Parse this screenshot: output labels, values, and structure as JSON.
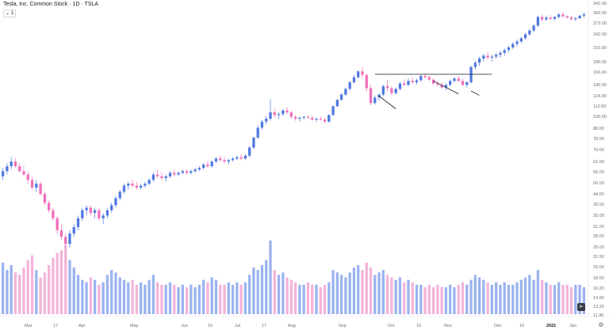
{
  "header": {
    "title": "Tesla, Inc. Common Stock · 1D · TSLA",
    "indicator_badge": "1"
  },
  "controls": {
    "replay_icon": "replay-icon",
    "settings_icon": "gear-icon"
  },
  "colors": {
    "up": "#4f78e0",
    "down": "#f06fb9",
    "vol_up": "#9ab3ef",
    "vol_down": "#f4b3da",
    "trend": "#131722"
  },
  "chart_data": {
    "type": "candlestick",
    "price_scale": "log",
    "price_axis_labels": [
      "342.00",
      "300.00",
      "273.00",
      "242.00",
      "210.00",
      "180.00",
      "160.00",
      "140.00",
      "124.00",
      "112.00",
      "100.00",
      "88.00",
      "78.00",
      "70.00",
      "62.00",
      "56.00",
      "50.00",
      "44.00",
      "39.00",
      "35.00",
      "31.00",
      "28.00",
      "25.00"
    ],
    "volume_axis_labels": [
      "22.50",
      "20.00",
      "18.00",
      "16.20",
      "14.60",
      "13.20",
      "11.90"
    ],
    "x_labels": [
      {
        "text": "Mar",
        "bold": false
      },
      {
        "text": "17",
        "bold": false
      },
      {
        "text": "Apr",
        "bold": false
      },
      {
        "text": "May",
        "bold": false
      },
      {
        "text": "Jun",
        "bold": false
      },
      {
        "text": "16",
        "bold": false
      },
      {
        "text": "Jul",
        "bold": false
      },
      {
        "text": "17",
        "bold": false
      },
      {
        "text": "Aug",
        "bold": false
      },
      {
        "text": "Sep",
        "bold": false
      },
      {
        "text": "Oct",
        "bold": false
      },
      {
        "text": "16",
        "bold": false
      },
      {
        "text": "Nov",
        "bold": false
      },
      {
        "text": "Dec",
        "bold": false
      },
      {
        "text": "16",
        "bold": false
      },
      {
        "text": "2021",
        "bold": true
      },
      {
        "text": "Jan",
        "bold": false
      }
    ],
    "candles": [
      [
        52,
        57,
        50,
        55
      ],
      [
        55,
        60,
        53,
        58
      ],
      [
        58,
        64,
        56,
        61
      ],
      [
        61,
        63,
        57,
        58
      ],
      [
        58,
        60,
        54,
        55
      ],
      [
        55,
        58,
        52,
        53
      ],
      [
        53,
        55,
        48,
        50
      ],
      [
        50,
        52,
        45,
        46
      ],
      [
        46,
        50,
        44,
        48
      ],
      [
        48,
        49,
        42,
        43
      ],
      [
        43,
        44,
        38,
        39
      ],
      [
        39,
        40,
        35,
        36
      ],
      [
        36,
        37,
        32,
        33
      ],
      [
        33,
        34,
        28,
        29
      ],
      [
        29,
        31,
        26,
        27
      ],
      [
        27,
        28,
        24,
        25
      ],
      [
        25,
        29,
        24,
        28
      ],
      [
        28,
        31,
        27,
        30
      ],
      [
        30,
        34,
        29,
        33
      ],
      [
        33,
        37,
        32,
        36
      ],
      [
        36,
        38,
        34,
        37
      ],
      [
        37,
        38,
        34,
        35
      ],
      [
        35,
        37,
        33,
        36
      ],
      [
        36,
        37,
        32,
        33
      ],
      [
        33,
        35,
        31,
        34
      ],
      [
        34,
        37,
        33,
        36
      ],
      [
        36,
        39,
        35,
        38
      ],
      [
        38,
        42,
        37,
        41
      ],
      [
        41,
        45,
        40,
        44
      ],
      [
        44,
        48,
        43,
        47
      ],
      [
        47,
        49,
        45,
        48
      ],
      [
        48,
        50,
        46,
        47
      ],
      [
        47,
        49,
        45,
        46
      ],
      [
        46,
        48,
        45,
        47
      ],
      [
        47,
        49,
        46,
        48
      ],
      [
        48,
        51,
        47,
        50
      ],
      [
        50,
        54,
        49,
        53
      ],
      [
        53,
        56,
        51,
        52
      ],
      [
        52,
        54,
        50,
        51
      ],
      [
        51,
        53,
        49,
        52
      ],
      [
        52,
        55,
        51,
        54
      ],
      [
        54,
        56,
        52,
        53
      ],
      [
        53,
        55,
        52,
        54
      ],
      [
        54,
        56,
        53,
        55
      ],
      [
        55,
        56,
        53,
        54
      ],
      [
        54,
        56,
        53,
        55
      ],
      [
        55,
        57,
        54,
        56
      ],
      [
        56,
        58,
        55,
        57
      ],
      [
        57,
        60,
        56,
        59
      ],
      [
        59,
        61,
        57,
        58
      ],
      [
        58,
        62,
        57,
        61
      ],
      [
        61,
        64,
        60,
        63
      ],
      [
        63,
        65,
        61,
        62
      ],
      [
        62,
        64,
        60,
        61
      ],
      [
        61,
        63,
        59,
        62
      ],
      [
        62,
        64,
        61,
        63
      ],
      [
        63,
        65,
        62,
        64
      ],
      [
        64,
        66,
        62,
        63
      ],
      [
        63,
        66,
        62,
        65
      ],
      [
        65,
        72,
        64,
        71
      ],
      [
        71,
        80,
        70,
        79
      ],
      [
        79,
        90,
        78,
        88
      ],
      [
        88,
        96,
        86,
        94
      ],
      [
        94,
        100,
        91,
        97
      ],
      [
        97,
        120,
        95,
        104
      ],
      [
        104,
        108,
        98,
        101
      ],
      [
        101,
        104,
        97,
        102
      ],
      [
        102,
        108,
        100,
        106
      ],
      [
        106,
        110,
        102,
        104
      ],
      [
        104,
        106,
        97,
        99
      ],
      [
        99,
        101,
        95,
        97
      ],
      [
        97,
        99,
        94,
        98
      ],
      [
        98,
        100,
        96,
        99
      ],
      [
        99,
        101,
        97,
        98
      ],
      [
        98,
        100,
        95,
        96
      ],
      [
        96,
        98,
        94,
        97
      ],
      [
        97,
        99,
        95,
        96
      ],
      [
        96,
        98,
        93,
        94
      ],
      [
        94,
        102,
        93,
        101
      ],
      [
        101,
        112,
        100,
        111
      ],
      [
        111,
        120,
        110,
        119
      ],
      [
        119,
        128,
        118,
        126
      ],
      [
        126,
        136,
        124,
        134
      ],
      [
        134,
        146,
        132,
        144
      ],
      [
        144,
        156,
        142,
        152
      ],
      [
        152,
        164,
        150,
        162
      ],
      [
        162,
        170,
        150,
        156
      ],
      [
        156,
        158,
        130,
        135
      ],
      [
        135,
        140,
        112,
        115
      ],
      [
        115,
        125,
        113,
        122
      ],
      [
        122,
        128,
        118,
        126
      ],
      [
        126,
        140,
        124,
        138
      ],
      [
        138,
        148,
        130,
        135
      ],
      [
        135,
        138,
        125,
        128
      ],
      [
        128,
        136,
        126,
        134
      ],
      [
        134,
        145,
        132,
        142
      ],
      [
        142,
        148,
        138,
        140
      ],
      [
        140,
        150,
        138,
        146
      ],
      [
        146,
        152,
        142,
        144
      ],
      [
        144,
        150,
        140,
        147
      ],
      [
        147,
        156,
        145,
        154
      ],
      [
        154,
        158,
        150,
        152
      ],
      [
        152,
        155,
        146,
        148
      ],
      [
        148,
        150,
        140,
        142
      ],
      [
        142,
        146,
        138,
        140
      ],
      [
        140,
        144,
        134,
        136
      ],
      [
        136,
        142,
        132,
        140
      ],
      [
        140,
        148,
        138,
        146
      ],
      [
        146,
        152,
        144,
        150
      ],
      [
        150,
        154,
        144,
        146
      ],
      [
        146,
        150,
        138,
        140
      ],
      [
        140,
        146,
        136,
        144
      ],
      [
        144,
        172,
        142,
        170
      ],
      [
        170,
        182,
        165,
        178
      ],
      [
        178,
        190,
        172,
        186
      ],
      [
        186,
        196,
        180,
        192
      ],
      [
        192,
        200,
        184,
        188
      ],
      [
        188,
        194,
        180,
        190
      ],
      [
        190,
        198,
        186,
        194
      ],
      [
        194,
        202,
        188,
        198
      ],
      [
        198,
        208,
        192,
        204
      ],
      [
        204,
        214,
        198,
        210
      ],
      [
        210,
        222,
        206,
        218
      ],
      [
        218,
        228,
        212,
        224
      ],
      [
        224,
        236,
        220,
        232
      ],
      [
        232,
        246,
        228,
        242
      ],
      [
        242,
        256,
        238,
        252
      ],
      [
        252,
        270,
        248,
        266
      ],
      [
        266,
        296,
        262,
        292
      ],
      [
        292,
        300,
        278,
        284
      ],
      [
        284,
        296,
        280,
        290
      ],
      [
        290,
        298,
        282,
        286
      ],
      [
        286,
        294,
        280,
        292
      ],
      [
        292,
        304,
        288,
        300
      ],
      [
        300,
        308,
        290,
        294
      ],
      [
        294,
        298,
        286,
        290
      ],
      [
        290,
        296,
        282,
        285
      ],
      [
        285,
        292,
        280,
        288
      ],
      [
        288,
        298,
        286,
        296
      ],
      [
        296,
        306,
        290,
        300
      ]
    ],
    "volumes": [
      21,
      18,
      20,
      17,
      16,
      19,
      22,
      24,
      18,
      15,
      17,
      20,
      23,
      25,
      26,
      28,
      22,
      19,
      16,
      14,
      13,
      15,
      14,
      12,
      13,
      16,
      18,
      17,
      15,
      14,
      13,
      14,
      12,
      13,
      12,
      14,
      16,
      13,
      12,
      12,
      13,
      12,
      11,
      12,
      11,
      12,
      11,
      12,
      14,
      13,
      15,
      14,
      12,
      12,
      13,
      12,
      13,
      12,
      13,
      16,
      19,
      18,
      20,
      22,
      30,
      18,
      16,
      17,
      15,
      14,
      13,
      12,
      12,
      13,
      12,
      12,
      11,
      12,
      13,
      18,
      17,
      16,
      15,
      17,
      19,
      20,
      18,
      21,
      19,
      16,
      17,
      18,
      16,
      15,
      14,
      15,
      13,
      14,
      13,
      12,
      12,
      11,
      12,
      11,
      12,
      11,
      11,
      12,
      11,
      12,
      13,
      12,
      14,
      16,
      15,
      14,
      13,
      12,
      13,
      12,
      13,
      12,
      12,
      13,
      14,
      15,
      16,
      14,
      18,
      14,
      13,
      12,
      12,
      13,
      12,
      12,
      11,
      12,
      12,
      11
    ]
  }
}
